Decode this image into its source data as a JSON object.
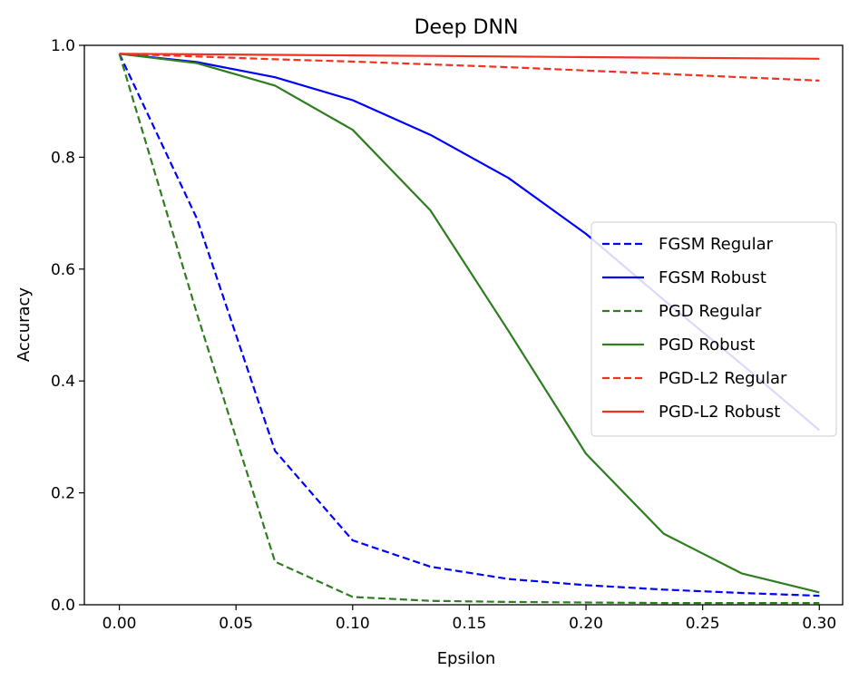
{
  "chart_data": {
    "type": "line",
    "title": "Deep DNN",
    "xlabel": "Epsilon",
    "ylabel": "Accuracy",
    "xlim": [
      -0.015,
      0.31
    ],
    "ylim": [
      0.0,
      1.0
    ],
    "xticks": [
      {
        "value": 0.0,
        "label": "0.00"
      },
      {
        "value": 0.05,
        "label": "0.05"
      },
      {
        "value": 0.1,
        "label": "0.10"
      },
      {
        "value": 0.15,
        "label": "0.15"
      },
      {
        "value": 0.2,
        "label": "0.20"
      },
      {
        "value": 0.25,
        "label": "0.25"
      },
      {
        "value": 0.3,
        "label": "0.30"
      }
    ],
    "yticks": [
      {
        "value": 0.0,
        "label": "0.0"
      },
      {
        "value": 0.2,
        "label": "0.2"
      },
      {
        "value": 0.4,
        "label": "0.4"
      },
      {
        "value": 0.6,
        "label": "0.6"
      },
      {
        "value": 0.8,
        "label": "0.8"
      },
      {
        "value": 1.0,
        "label": "1.0"
      }
    ],
    "grid": false,
    "legend_position": "center-right",
    "x": [
      0.0,
      0.0333,
      0.0667,
      0.1,
      0.1333,
      0.1667,
      0.2,
      0.2333,
      0.2667,
      0.3
    ],
    "series": [
      {
        "name": "FGSM Regular",
        "color": "#0000ff",
        "dash": true,
        "values": [
          0.985,
          0.69,
          0.275,
          0.115,
          0.068,
          0.046,
          0.035,
          0.027,
          0.021,
          0.016
        ]
      },
      {
        "name": "FGSM Robust",
        "color": "#0000ff",
        "dash": false,
        "values": [
          0.985,
          0.97,
          0.943,
          0.902,
          0.84,
          0.763,
          0.663,
          0.545,
          0.43,
          0.312
        ]
      },
      {
        "name": "PGD Regular",
        "color": "#2e7d1f",
        "dash": true,
        "values": [
          0.985,
          0.52,
          0.077,
          0.014,
          0.007,
          0.005,
          0.004,
          0.003,
          0.003,
          0.003
        ]
      },
      {
        "name": "PGD Robust",
        "color": "#2e7d1f",
        "dash": false,
        "values": [
          0.985,
          0.968,
          0.928,
          0.849,
          0.705,
          0.49,
          0.27,
          0.127,
          0.056,
          0.022
        ]
      },
      {
        "name": "PGD-L2 Regular",
        "color": "#ee3322",
        "dash": true,
        "values": [
          0.985,
          0.98,
          0.975,
          0.971,
          0.966,
          0.961,
          0.955,
          0.949,
          0.943,
          0.937
        ]
      },
      {
        "name": "PGD-L2 Robust",
        "color": "#ee3322",
        "dash": false,
        "values": [
          0.985,
          0.984,
          0.983,
          0.982,
          0.981,
          0.98,
          0.979,
          0.978,
          0.977,
          0.976
        ]
      }
    ]
  }
}
